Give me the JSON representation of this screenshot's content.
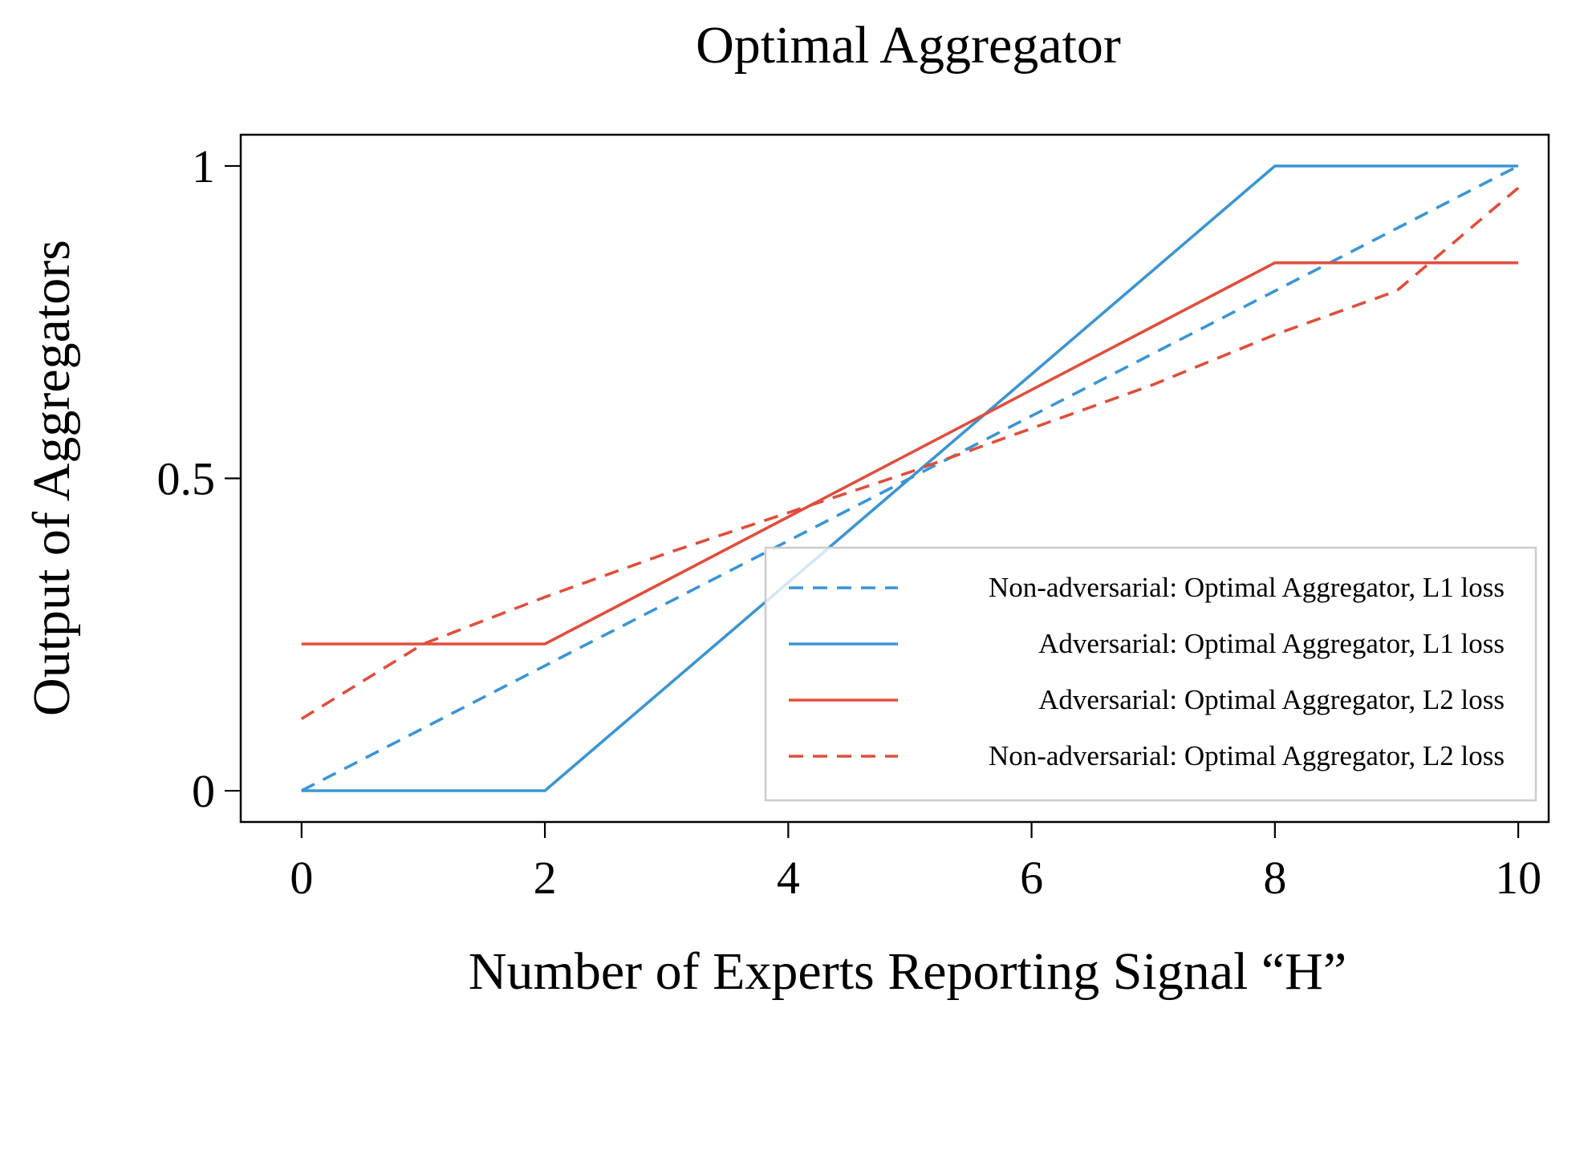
{
  "chart_data": {
    "type": "line",
    "title": "Optimal Aggregator",
    "xlabel": "Number of Experts Reporting Signal “H”",
    "ylabel": "Output of Aggregators",
    "xlim": [
      -0.5,
      10.25
    ],
    "ylim": [
      -0.05,
      1.05
    ],
    "xticks": [
      0,
      2,
      4,
      6,
      8,
      10
    ],
    "xtick_labels": [
      "0",
      "2",
      "4",
      "6",
      "8",
      "10"
    ],
    "yticks": [
      0,
      0.5,
      1
    ],
    "ytick_labels": [
      "0",
      "0.5",
      "1"
    ],
    "grid": false,
    "legend_position": "lower-right",
    "series": [
      {
        "name": "Non-adversarial: Optimal Aggregator, L1 loss",
        "color": "#3a95d4",
        "style": "dashed",
        "x": [
          0,
          10
        ],
        "y": [
          0,
          1
        ]
      },
      {
        "name": "Adversarial: Optimal Aggregator, L1 loss",
        "color": "#3a95d4",
        "style": "solid",
        "x": [
          0,
          2,
          8,
          10
        ],
        "y": [
          0,
          0,
          1,
          1
        ]
      },
      {
        "name": "Adversarial: Optimal Aggregator, L2 loss",
        "color": "#e04e3c",
        "style": "solid",
        "x": [
          0,
          2,
          8,
          10
        ],
        "y": [
          0.235,
          0.235,
          0.845,
          0.845
        ]
      },
      {
        "name": "Non-adversarial: Optimal Aggregator, L2 loss",
        "color": "#e04e3c",
        "style": "dashed",
        "x": [
          0,
          1,
          2,
          3,
          4,
          5,
          6,
          7,
          8,
          9,
          10
        ],
        "y": [
          0.115,
          0.235,
          0.31,
          0.38,
          0.445,
          0.51,
          0.58,
          0.65,
          0.73,
          0.8,
          0.965
        ]
      }
    ]
  }
}
